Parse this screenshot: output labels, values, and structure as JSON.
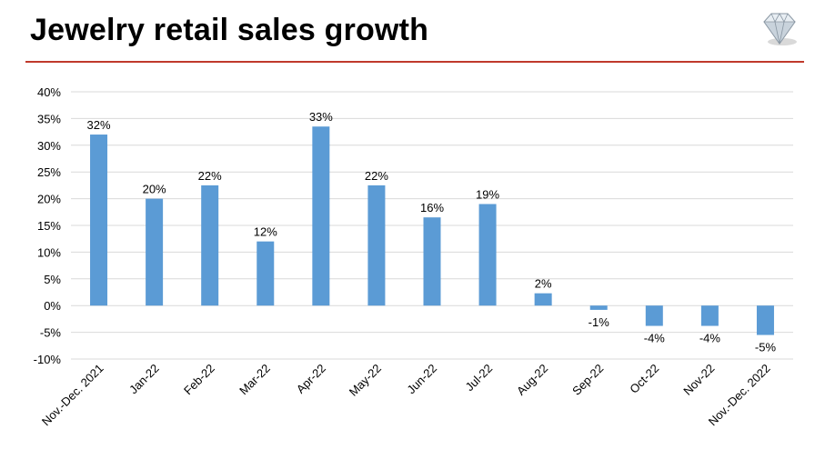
{
  "page": {
    "title": "Jewelry retail sales growth",
    "accent_color": "#c0392b",
    "logo_icon": "diamond-icon"
  },
  "chart_data": {
    "type": "bar",
    "title": "Jewelry retail sales growth",
    "xlabel": "",
    "ylabel": "",
    "ylim": [
      -10,
      40
    ],
    "yticks": [
      -10,
      -5,
      0,
      5,
      10,
      15,
      20,
      25,
      30,
      35,
      40
    ],
    "ytick_labels": [
      "-10%",
      "-5%",
      "0%",
      "5%",
      "10%",
      "15%",
      "20%",
      "25%",
      "30%",
      "35%",
      "40%"
    ],
    "grid": true,
    "bar_color": "#5b9bd5",
    "categories": [
      "Nov.-Dec. 2021",
      "Jan-22",
      "Feb-22",
      "Mar-22",
      "Apr-22",
      "May-22",
      "Jun-22",
      "Jul-22",
      "Aug-22",
      "Sep-22",
      "Oct-22",
      "Nov-22",
      "Nov.-Dec. 2022"
    ],
    "values": [
      32,
      20,
      22.5,
      12,
      33.5,
      22.5,
      16.5,
      19,
      2.3,
      -0.8,
      -3.8,
      -3.8,
      -5.5
    ],
    "data_labels": [
      "32%",
      "20%",
      "22%",
      "12%",
      "33%",
      "22%",
      "16%",
      "19%",
      "2%",
      "-1%",
      "-4%",
      "-4%",
      "-5%"
    ]
  }
}
